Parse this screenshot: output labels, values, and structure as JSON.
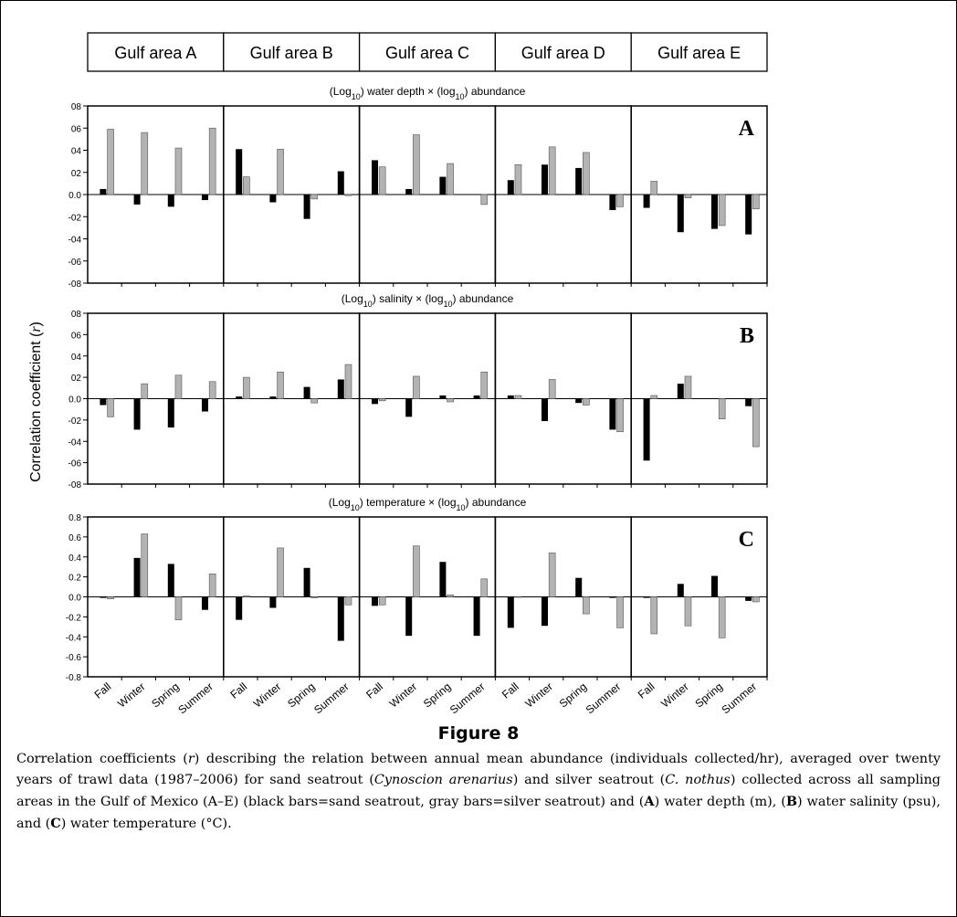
{
  "chart_data": {
    "type": "bar",
    "areas": [
      "Gulf area A",
      "Gulf area B",
      "Gulf area C",
      "Gulf area D",
      "Gulf area E"
    ],
    "seasons": [
      "Fall",
      "Winter",
      "Spring",
      "Summer"
    ],
    "ylabel": "Correlation coefficient (r)",
    "series_colors": {
      "sand_seatrout": "#000000",
      "silver_seatrout": "#b3b3b3"
    },
    "panels": [
      {
        "letter": "A",
        "title_parts": [
          "(Log",
          "10",
          ") water depth × (log",
          "10",
          ") abundance"
        ],
        "ylim": [
          -0.8,
          0.8
        ],
        "yticks": [
          "08",
          "06",
          "04",
          "02",
          "0.0",
          "-02",
          "-04",
          "-06",
          "-08"
        ],
        "data": [
          {
            "black": [
              0.05,
              -0.09,
              -0.11,
              -0.05
            ],
            "gray": [
              0.59,
              0.56,
              0.42,
              0.6
            ]
          },
          {
            "black": [
              0.41,
              -0.07,
              -0.22,
              0.21
            ],
            "gray": [
              0.16,
              0.41,
              -0.04,
              -0.01
            ]
          },
          {
            "black": [
              0.31,
              0.05,
              0.16,
              0.0
            ],
            "gray": [
              0.25,
              0.54,
              0.28,
              -0.09
            ]
          },
          {
            "black": [
              0.13,
              0.27,
              0.24,
              -0.14
            ],
            "gray": [
              0.27,
              0.43,
              0.38,
              -0.11
            ]
          },
          {
            "black": [
              -0.12,
              -0.34,
              -0.31,
              -0.36
            ],
            "gray": [
              0.12,
              -0.03,
              -0.28,
              -0.13
            ]
          }
        ]
      },
      {
        "letter": "B",
        "title_parts": [
          "(Log",
          "10",
          ") salinity × (log",
          "10",
          ") abundance"
        ],
        "ylim": [
          -0.8,
          0.8
        ],
        "yticks": [
          "08",
          "06",
          "04",
          "02",
          "0.0",
          "-02",
          "-04",
          "-06",
          "-08"
        ],
        "data": [
          {
            "black": [
              -0.06,
              -0.29,
              -0.27,
              -0.12
            ],
            "gray": [
              -0.17,
              0.14,
              0.22,
              0.16
            ]
          },
          {
            "black": [
              0.02,
              0.02,
              0.11,
              0.18
            ],
            "gray": [
              0.2,
              0.25,
              -0.04,
              0.32
            ]
          },
          {
            "black": [
              -0.05,
              -0.17,
              0.03,
              0.03
            ],
            "gray": [
              -0.02,
              0.21,
              -0.03,
              0.25
            ]
          },
          {
            "black": [
              0.03,
              -0.21,
              -0.04,
              -0.29
            ],
            "gray": [
              0.03,
              0.18,
              -0.06,
              -0.31
            ]
          },
          {
            "black": [
              -0.58,
              0.14,
              0.0,
              -0.07
            ],
            "gray": [
              0.03,
              0.21,
              -0.19,
              -0.45
            ]
          }
        ]
      },
      {
        "letter": "C",
        "title_parts": [
          "(Log",
          "10",
          ") temperature × (log",
          "10",
          ") abundance"
        ],
        "ylim": [
          -0.8,
          0.8
        ],
        "yticks": [
          "0.8",
          "0.6",
          "0.4",
          "0.2",
          "0.0",
          "-0.2",
          "-0.4",
          "-0.6",
          "-0.8"
        ],
        "data": [
          {
            "black": [
              -0.01,
              0.39,
              0.33,
              -0.13
            ],
            "gray": [
              -0.02,
              0.63,
              -0.23,
              0.23
            ]
          },
          {
            "black": [
              -0.23,
              -0.11,
              0.29,
              -0.44
            ],
            "gray": [
              0.01,
              0.49,
              -0.01,
              -0.08
            ]
          },
          {
            "black": [
              -0.09,
              -0.39,
              0.35,
              -0.39
            ],
            "gray": [
              -0.08,
              0.51,
              0.02,
              0.18
            ]
          },
          {
            "black": [
              -0.31,
              -0.29,
              0.19,
              -0.01
            ],
            "gray": [
              0.0,
              0.44,
              -0.17,
              -0.31
            ]
          },
          {
            "black": [
              -0.01,
              0.13,
              0.21,
              -0.04
            ],
            "gray": [
              -0.37,
              -0.29,
              -0.41,
              -0.05
            ]
          }
        ]
      }
    ]
  },
  "figure": {
    "title": "Figure 8"
  },
  "caption": {
    "segments": [
      {
        "t": "Correlation coefficients ("
      },
      {
        "t": "r",
        "i": true
      },
      {
        "t": ") describing the relation between annual mean abundance (individuals collected/hr), averaged over twenty years of trawl data (1987–2006) for sand seatrout ("
      },
      {
        "t": "Cynoscion arenarius",
        "i": true
      },
      {
        "t": ") and silver seatrout ("
      },
      {
        "t": "C. nothus",
        "i": true
      },
      {
        "t": ") collected across all sampling areas in the Gulf of Mexico (A–E) (black bars=sand seatrout, gray bars=silver seatrout) and ("
      },
      {
        "t": "A",
        "b": true
      },
      {
        "t": ") water depth (m), ("
      },
      {
        "t": "B",
        "b": true
      },
      {
        "t": ") water salinity (psu), and ("
      },
      {
        "t": "C",
        "b": true
      },
      {
        "t": ") water temperature (°C)."
      }
    ]
  }
}
